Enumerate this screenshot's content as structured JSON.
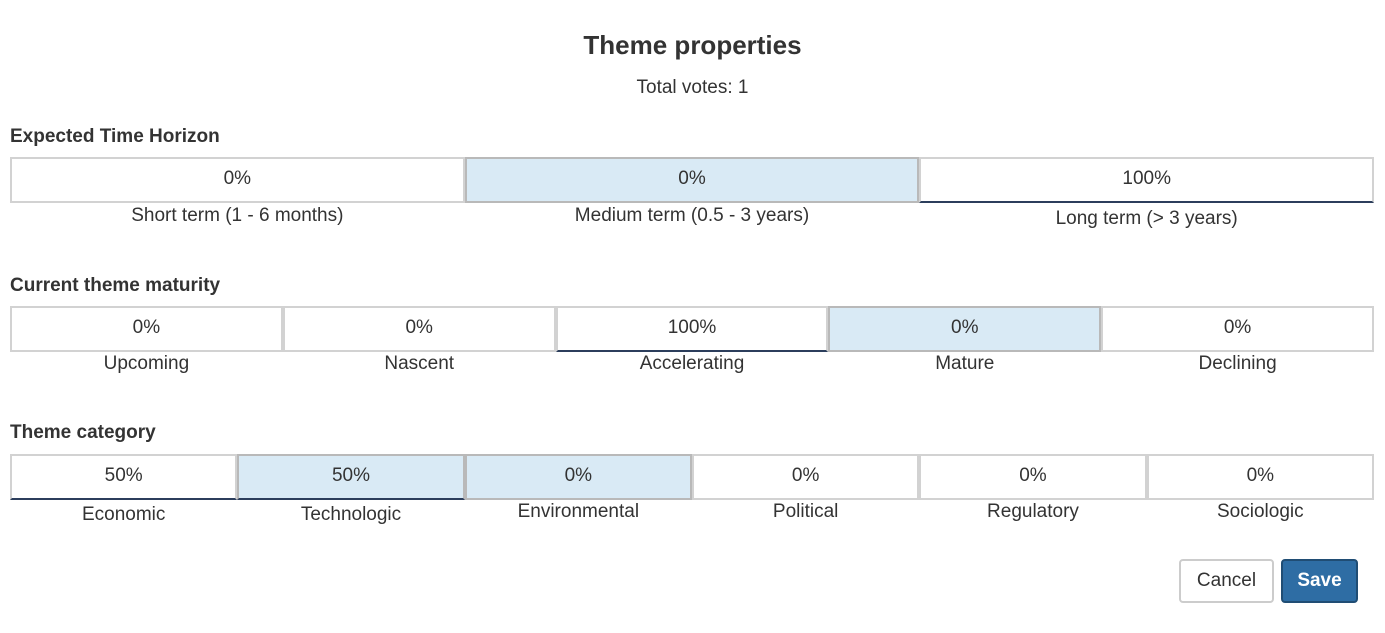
{
  "dialog": {
    "title": "Theme properties",
    "total_votes": "Total votes: 1"
  },
  "sections": [
    {
      "label": "Expected Time Horizon",
      "options": [
        {
          "percent": "0%",
          "label": "Short term (1 - 6 months)"
        },
        {
          "percent": "0%",
          "label": "Medium term (0.5 - 3 years)"
        },
        {
          "percent": "100%",
          "label": "Long term (> 3 years)"
        }
      ]
    },
    {
      "label": "Current theme maturity",
      "options": [
        {
          "percent": "0%",
          "label": "Upcoming"
        },
        {
          "percent": "0%",
          "label": "Nascent"
        },
        {
          "percent": "100%",
          "label": "Accelerating"
        },
        {
          "percent": "0%",
          "label": "Mature"
        },
        {
          "percent": "0%",
          "label": "Declining"
        }
      ]
    },
    {
      "label": "Theme category",
      "options": [
        {
          "percent": "50%",
          "label": "Economic"
        },
        {
          "percent": "50%",
          "label": "Technologic"
        },
        {
          "percent": "0%",
          "label": "Environmental"
        },
        {
          "percent": "0%",
          "label": "Political"
        },
        {
          "percent": "0%",
          "label": "Regulatory"
        },
        {
          "percent": "0%",
          "label": "Sociologic"
        }
      ]
    }
  ],
  "footer": {
    "cancel_label": "Cancel",
    "save_label": "Save"
  },
  "colors": {
    "highlight": "#d9eaf5",
    "vote_underline": "#2c3e5c",
    "save_bg": "#2e6da4"
  }
}
